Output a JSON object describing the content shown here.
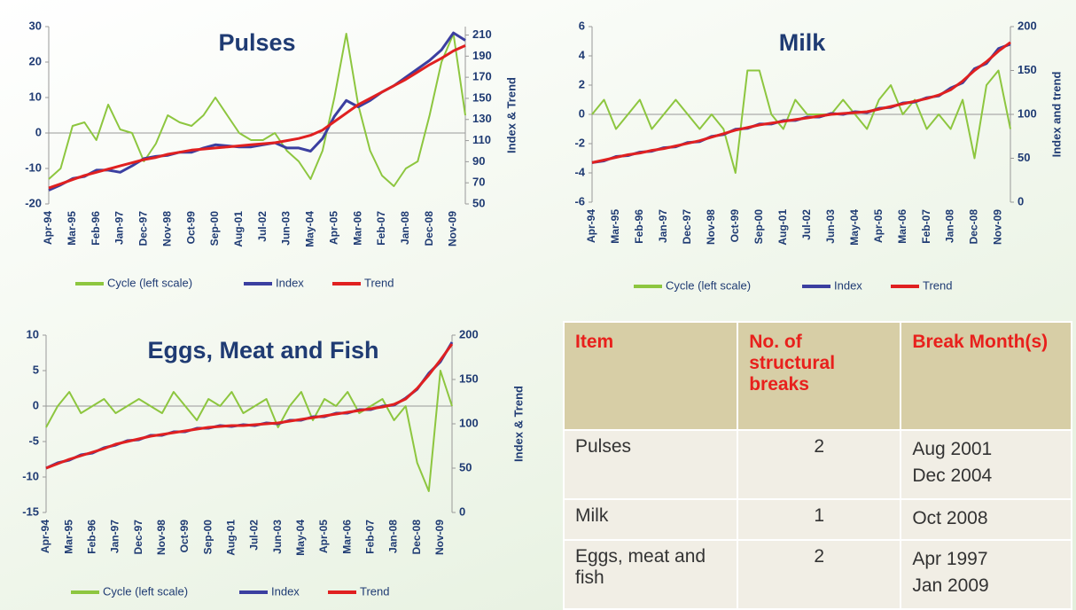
{
  "chart_data": [
    {
      "type": "line",
      "title": "Pulses",
      "y2label": "Index & Trend",
      "categories": [
        "Apr-94",
        null,
        "Mar-95",
        null,
        "Feb-96",
        null,
        "Jan-97",
        null,
        "Dec-97",
        null,
        "Nov-98",
        null,
        "Oct-99",
        null,
        "Sep-00",
        null,
        "Aug-01",
        null,
        "Jul-02",
        null,
        "Jun-03",
        null,
        "May-04",
        null,
        "Apr-05",
        null,
        "Mar-06",
        null,
        "Feb-07",
        null,
        "Jan-08",
        null,
        "Dec-08",
        null,
        "Nov-09",
        null
      ],
      "ylim": [
        -20,
        30
      ],
      "yticks": [
        -20,
        -10,
        0,
        10,
        20,
        30
      ],
      "y2lim": [
        50,
        218
      ],
      "y2ticks": [
        50,
        70,
        90,
        110,
        130,
        150,
        170,
        190,
        210
      ],
      "series": [
        {
          "name": "Cycle (left scale)",
          "color": "#8dc63f",
          "values": [
            -13,
            -10,
            2,
            3,
            -2,
            8,
            1,
            0,
            -8,
            -3,
            5,
            3,
            2,
            5,
            10,
            5,
            0,
            -2,
            -2,
            0,
            -5,
            -8,
            -13,
            -5,
            10,
            28,
            8,
            -5,
            -12,
            -15,
            -10,
            -8,
            5,
            20,
            28,
            5
          ]
        },
        {
          "name": "Index",
          "color": "#3b3fa0",
          "axis": "y2",
          "values": [
            63,
            68,
            74,
            76,
            82,
            82,
            80,
            86,
            93,
            95,
            96,
            99,
            99,
            103,
            106,
            105,
            104,
            104,
            106,
            108,
            103,
            103,
            100,
            112,
            133,
            148,
            142,
            148,
            156,
            162,
            170,
            178,
            186,
            196,
            212,
            205
          ]
        },
        {
          "name": "Trend",
          "color": "#e02020",
          "axis": "y2",
          "values": [
            65,
            69,
            73,
            77,
            80,
            83,
            86,
            89,
            92,
            94,
            97,
            99,
            101,
            102,
            103,
            104,
            105,
            106,
            107,
            108,
            110,
            112,
            115,
            120,
            128,
            136,
            144,
            150,
            156,
            162,
            168,
            175,
            182,
            188,
            195,
            200
          ]
        }
      ]
    },
    {
      "type": "line",
      "title": "Milk",
      "y2label": "Index and trend",
      "categories": [
        "Apr-94",
        null,
        "Mar-95",
        null,
        "Feb-96",
        null,
        "Jan-97",
        null,
        "Dec-97",
        null,
        "Nov-98",
        null,
        "Oct-99",
        null,
        "Sep-00",
        null,
        "Aug-01",
        null,
        "Jul-02",
        null,
        "Jun-03",
        null,
        "May-04",
        null,
        "Apr-05",
        null,
        "Mar-06",
        null,
        "Feb-07",
        null,
        "Jan-08",
        null,
        "Dec-08",
        null,
        "Nov-09",
        null
      ],
      "ylim": [
        -6,
        6
      ],
      "yticks": [
        -6,
        -4,
        -2,
        0,
        2,
        4,
        6
      ],
      "y2lim": [
        0,
        200
      ],
      "y2ticks": [
        0,
        50,
        100,
        150,
        200
      ],
      "series": [
        {
          "name": "Cycle (left scale)",
          "color": "#8dc63f",
          "values": [
            0,
            1,
            -1,
            0,
            1,
            -1,
            0,
            1,
            0,
            -1,
            0,
            -1,
            -4,
            3,
            3,
            0,
            -1,
            1,
            0,
            0,
            0,
            1,
            0,
            -1,
            1,
            2,
            0,
            1,
            -1,
            0,
            -1,
            1,
            -3,
            2,
            3,
            -1
          ]
        },
        {
          "name": "Index",
          "color": "#3b3fa0",
          "axis": "y2",
          "values": [
            45,
            47,
            52,
            53,
            57,
            58,
            62,
            63,
            68,
            69,
            75,
            77,
            83,
            84,
            89,
            89,
            93,
            93,
            97,
            97,
            101,
            100,
            103,
            102,
            107,
            108,
            113,
            114,
            119,
            121,
            130,
            136,
            152,
            158,
            175,
            180
          ]
        },
        {
          "name": "Trend",
          "color": "#e02020",
          "axis": "y2",
          "values": [
            45,
            48,
            51,
            54,
            56,
            59,
            61,
            64,
            67,
            70,
            74,
            78,
            82,
            85,
            88,
            90,
            92,
            94,
            96,
            98,
            100,
            101,
            102,
            103,
            106,
            109,
            112,
            115,
            118,
            122,
            128,
            138,
            150,
            160,
            172,
            182
          ]
        }
      ]
    },
    {
      "type": "line",
      "title": "Eggs, Meat and Fish",
      "y2label": "Index & Trend",
      "categories": [
        "Apr-94",
        null,
        "Mar-95",
        null,
        "Feb-96",
        null,
        "Jan-97",
        null,
        "Dec-97",
        null,
        "Nov-98",
        null,
        "Oct-99",
        null,
        "Sep-00",
        null,
        "Aug-01",
        null,
        "Jul-02",
        null,
        "Jun-03",
        null,
        "May-04",
        null,
        "Apr-05",
        null,
        "Mar-06",
        null,
        "Feb-07",
        null,
        "Jan-08",
        null,
        "Dec-08",
        null,
        "Nov-09",
        null
      ],
      "ylim": [
        -15,
        10
      ],
      "yticks": [
        -15,
        -10,
        -5,
        0,
        5,
        10
      ],
      "y2lim": [
        0,
        200
      ],
      "y2ticks": [
        0,
        50,
        100,
        150,
        200
      ],
      "series": [
        {
          "name": "Cycle (left scale)",
          "color": "#8dc63f",
          "values": [
            -3,
            0,
            2,
            -1,
            0,
            1,
            -1,
            0,
            1,
            0,
            -1,
            2,
            0,
            -2,
            1,
            0,
            2,
            -1,
            0,
            1,
            -3,
            0,
            2,
            -2,
            1,
            0,
            2,
            -1,
            0,
            1,
            -2,
            0,
            -8,
            -12,
            5,
            0
          ]
        },
        {
          "name": "Index",
          "color": "#3b3fa0",
          "axis": "y2",
          "values": [
            50,
            56,
            59,
            65,
            67,
            73,
            76,
            81,
            82,
            87,
            87,
            91,
            91,
            95,
            95,
            98,
            97,
            99,
            98,
            101,
            100,
            104,
            104,
            108,
            108,
            112,
            112,
            116,
            116,
            120,
            121,
            129,
            139,
            157,
            170,
            192
          ]
        },
        {
          "name": "Trend",
          "color": "#e02020",
          "axis": "y2",
          "values": [
            50,
            55,
            60,
            64,
            68,
            72,
            77,
            80,
            83,
            86,
            88,
            90,
            92,
            94,
            96,
            97,
            98,
            98,
            99,
            100,
            101,
            103,
            105,
            107,
            109,
            111,
            113,
            115,
            117,
            119,
            122,
            128,
            140,
            155,
            172,
            190
          ]
        }
      ]
    }
  ],
  "table": {
    "header": [
      "Item",
      "No. of structural breaks",
      "Break Month(s)"
    ],
    "rows": [
      [
        "Pulses",
        2,
        [
          "Aug 2001",
          "Dec 2004"
        ]
      ],
      [
        "Milk",
        1,
        [
          "Oct 2008"
        ]
      ],
      [
        "Eggs, meat and fish",
        2,
        [
          "Apr 1997",
          "Jan 2009"
        ]
      ]
    ]
  }
}
